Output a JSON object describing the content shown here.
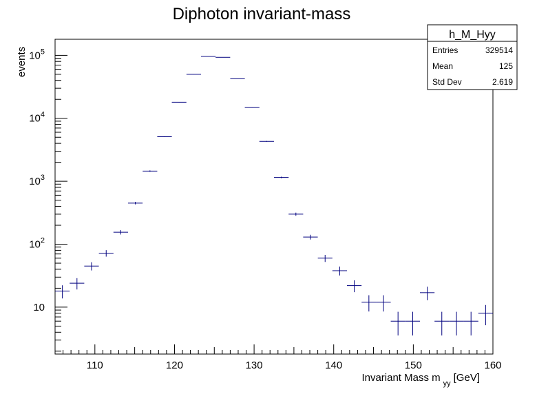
{
  "chart_data": {
    "type": "scatter",
    "title": "Diphoton invariant-mass",
    "xlabel_main": "Invariant Mass m",
    "xlabel_sub": "yy",
    "xlabel_unit": "[GeV]",
    "ylabel": "events",
    "xlim": [
      105,
      160
    ],
    "ylim": [
      1.8,
      180000
    ],
    "ylog": true,
    "grid": false,
    "x_ticks": [
      "110",
      "120",
      "130",
      "140",
      "150",
      "160"
    ],
    "y_ticks": [
      {
        "base": "10",
        "exp": "5",
        "value": 100000
      },
      {
        "base": "10",
        "exp": "4",
        "value": 10000
      },
      {
        "base": "10",
        "exp": "3",
        "value": 1000
      },
      {
        "base": "10",
        "exp": "2",
        "value": 100
      },
      {
        "base": "10",
        "exp": "",
        "value": 10
      }
    ],
    "bin_width": 1.8333,
    "series": [
      {
        "color": "#00007f",
        "x": [
          105.92,
          107.75,
          109.58,
          111.42,
          113.25,
          115.08,
          116.92,
          118.75,
          120.58,
          122.42,
          124.25,
          126.08,
          127.92,
          129.75,
          131.58,
          133.42,
          135.25,
          137.08,
          138.92,
          140.75,
          142.58,
          144.42,
          146.25,
          148.08,
          149.92,
          151.75,
          153.58,
          155.42,
          157.25,
          159.08
        ],
        "y": [
          18,
          24,
          45,
          72,
          155,
          450,
          1450,
          5100,
          18000,
          50000,
          97000,
          93000,
          43000,
          14800,
          4300,
          1150,
          300,
          130,
          60,
          38,
          22,
          12,
          12,
          6,
          6,
          17,
          6,
          6,
          6,
          8
        ]
      }
    ],
    "stats_box": {
      "name": "h_M_Hyy",
      "rows": [
        {
          "label": "Entries",
          "value": "329514"
        },
        {
          "label": "Mean",
          "value": "125"
        },
        {
          "label": "Std Dev",
          "value": "2.619"
        }
      ]
    }
  }
}
